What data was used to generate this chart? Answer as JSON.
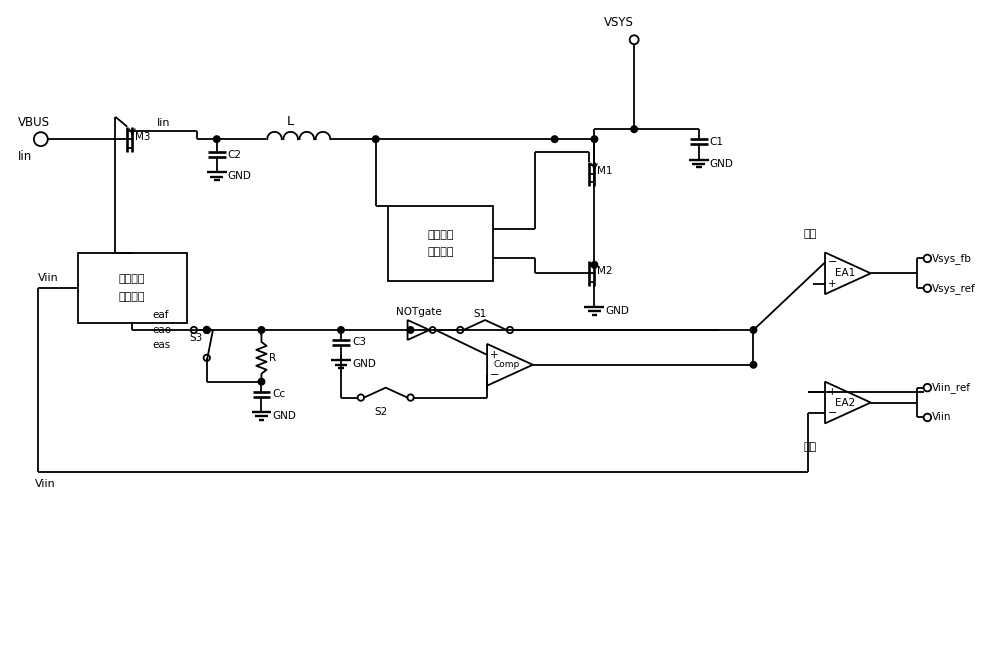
{
  "bg_color": "#ffffff",
  "line_color": "#000000",
  "figsize": [
    10.0,
    6.56
  ],
  "dpi": 100,
  "labels": {
    "VBUS": "VBUS",
    "Iin": "Iin",
    "L": "L",
    "M3": "M3",
    "M1": "M1",
    "M2": "M2",
    "C1": "C1",
    "C2": "C2",
    "C3": "C3",
    "Cc": "Cc",
    "R": "R",
    "VSYS": "VSYS",
    "GND": "GND",
    "eaf": "eaf",
    "eao": "eao",
    "eas": "eas",
    "S1": "S1",
    "S2": "S2",
    "S3": "S3",
    "NOTgate": "NOTgate",
    "Comp": "Comp",
    "EA1": "EA1",
    "EA2": "EA2",
    "box1_line1": "输入电流",
    "box1_line2": "采样电路",
    "box2_line1": "峰値限流",
    "box2_line2": "控制电路",
    "Viin": "Viin",
    "Vsys_fb": "Vsys_fb",
    "Vsys_ref": "Vsys_ref",
    "Viin_ref": "Viin_ref",
    "fast_loop": "快环",
    "slow_loop": "慢环"
  }
}
